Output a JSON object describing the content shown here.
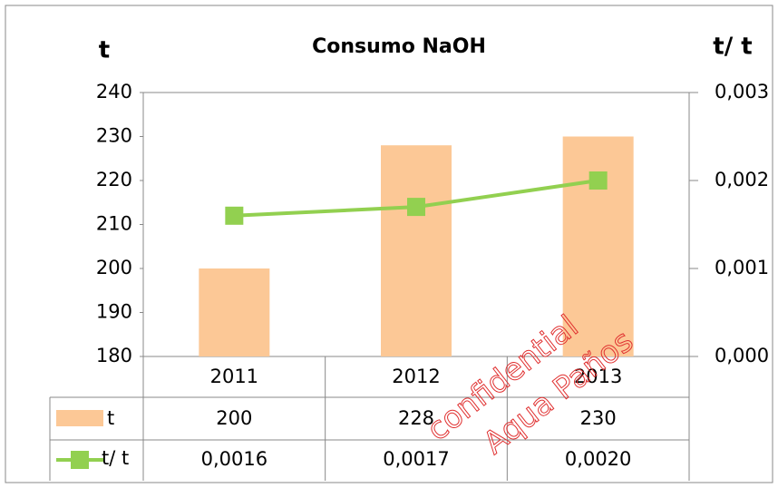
{
  "chart_data": {
    "type": "bar",
    "title": "Consumo NaOH",
    "y_label": "t",
    "y2_label": "t/ t",
    "categories": [
      "2011",
      "2012",
      "2013"
    ],
    "series": [
      {
        "name": "t",
        "type": "bar",
        "color": "#fcc896",
        "values": [
          200,
          228,
          230
        ]
      },
      {
        "name": "t/ t",
        "type": "line",
        "axis": "y2",
        "color": "#92d050",
        "values": [
          0.0016,
          0.0017,
          0.002
        ],
        "value_labels": [
          "0,0016",
          "0,0017",
          "0,0020"
        ]
      }
    ],
    "ylim": [
      180,
      240
    ],
    "yticks": [
      180,
      190,
      200,
      210,
      220,
      230,
      240
    ],
    "y2lim": [
      0,
      0.003
    ],
    "y2ticks": [
      {
        "value": 0,
        "label": "0,000"
      },
      {
        "value": 0.001,
        "label": "0,001"
      },
      {
        "value": 0.002,
        "label": "0,002"
      },
      {
        "value": 0.003,
        "label": "0,003"
      }
    ],
    "data_table": true,
    "watermark": [
      "confidential",
      "Aqua Paños"
    ]
  }
}
